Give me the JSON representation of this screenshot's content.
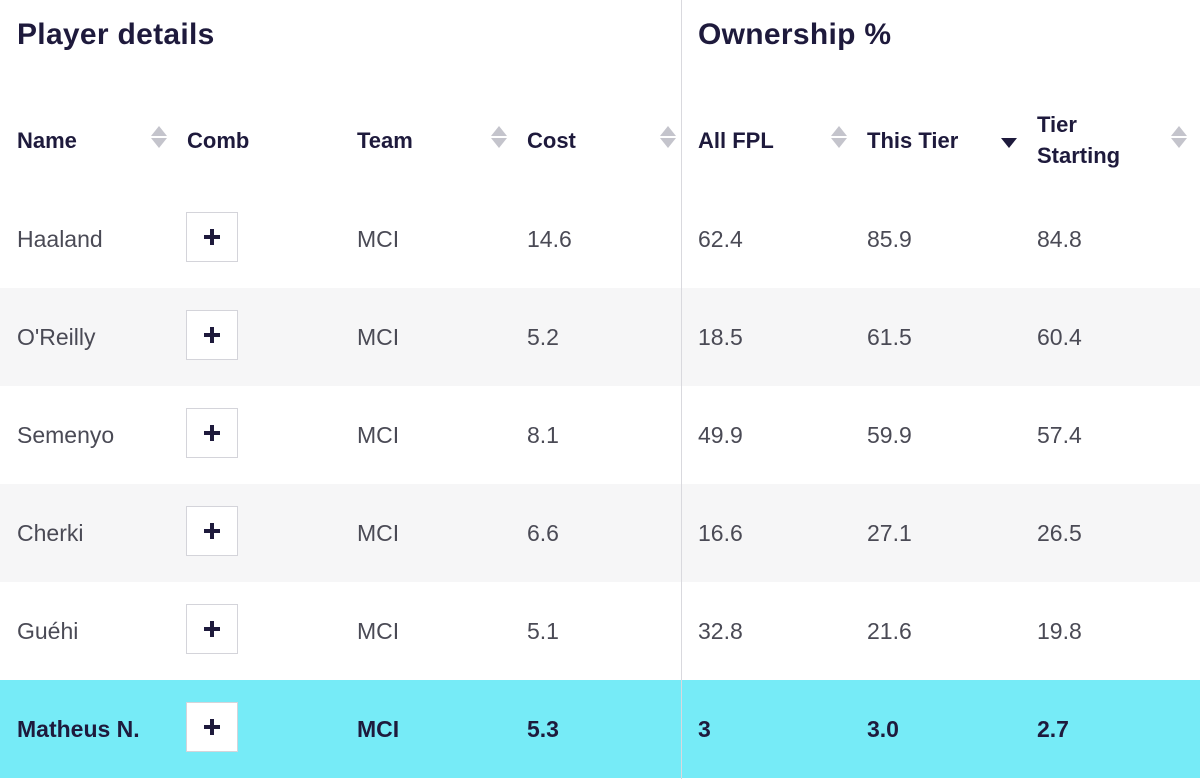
{
  "groups": {
    "player_details": "Player details",
    "ownership": "Ownership %"
  },
  "columns": {
    "name": "Name",
    "comb": "Comb",
    "team": "Team",
    "cost": "Cost",
    "all_fpl": "All FPL",
    "this_tier": "This Tier",
    "tier_starting_1": "Tier",
    "tier_starting_2": "Starting"
  },
  "sort": {
    "active_column": "this_tier",
    "direction": "descending"
  },
  "rows": [
    {
      "name": "Haaland",
      "team": "MCI",
      "cost": "14.6",
      "all_fpl": "62.4",
      "this_tier": "85.9",
      "tier_starting": "84.8"
    },
    {
      "name": "O'Reilly",
      "team": "MCI",
      "cost": "5.2",
      "all_fpl": "18.5",
      "this_tier": "61.5",
      "tier_starting": "60.4"
    },
    {
      "name": "Semenyo",
      "team": "MCI",
      "cost": "8.1",
      "all_fpl": "49.9",
      "this_tier": "59.9",
      "tier_starting": "57.4"
    },
    {
      "name": "Cherki",
      "team": "MCI",
      "cost": "6.6",
      "all_fpl": "16.6",
      "this_tier": "27.1",
      "tier_starting": "26.5"
    },
    {
      "name": "Guéhi",
      "team": "MCI",
      "cost": "5.1",
      "all_fpl": "32.8",
      "this_tier": "21.6",
      "tier_starting": "19.8"
    },
    {
      "name": "Matheus N.",
      "team": "MCI",
      "cost": "5.3",
      "all_fpl": "3",
      "this_tier": "3.0",
      "tier_starting": "2.7",
      "highlighted": true
    }
  ],
  "colors": {
    "highlight_row": "#76ebf7",
    "alt_row": "#f6f6f7",
    "text_dark": "#1e1a3c",
    "text_regular": "#4a4a55"
  },
  "icons": {
    "comb_button": "plus-icon",
    "sort": "sort-arrows-icon"
  }
}
